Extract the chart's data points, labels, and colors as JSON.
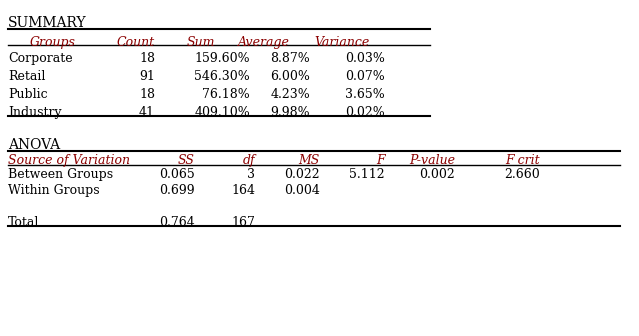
{
  "bg_color": "#ffffff",
  "text_color": "#000000",
  "header_color": "#8B0000",
  "summary_title": "SUMMARY",
  "anova_title": "ANOVA",
  "summary_col_headers": [
    "Groups",
    "Count",
    "Sum",
    "Average",
    "Variance"
  ],
  "summary_rows": [
    [
      "Corporate",
      "18",
      "159.60%",
      "8.87%",
      "0.03%"
    ],
    [
      "Retail",
      "91",
      "546.30%",
      "6.00%",
      "0.07%"
    ],
    [
      "Public",
      "18",
      "76.18%",
      "4.23%",
      "3.65%"
    ],
    [
      "Industry",
      "41",
      "409.10%",
      "9.98%",
      "0.02%"
    ]
  ],
  "anova_col_headers": [
    "Source of Variation",
    "SS",
    "df",
    "MS",
    "F",
    "P-value",
    "F crit"
  ],
  "anova_rows": [
    [
      "Between Groups",
      "0.065",
      "3",
      "0.022",
      "5.112",
      "0.002",
      "2.660"
    ],
    [
      "Within Groups",
      "0.699",
      "164",
      "0.004",
      "",
      "",
      ""
    ],
    [
      "",
      "",
      "",
      "",
      "",
      "",
      ""
    ],
    [
      "Total",
      "0.764",
      "167",
      "",
      "",
      "",
      ""
    ]
  ],
  "font_size": 9,
  "title_font_size": 10
}
